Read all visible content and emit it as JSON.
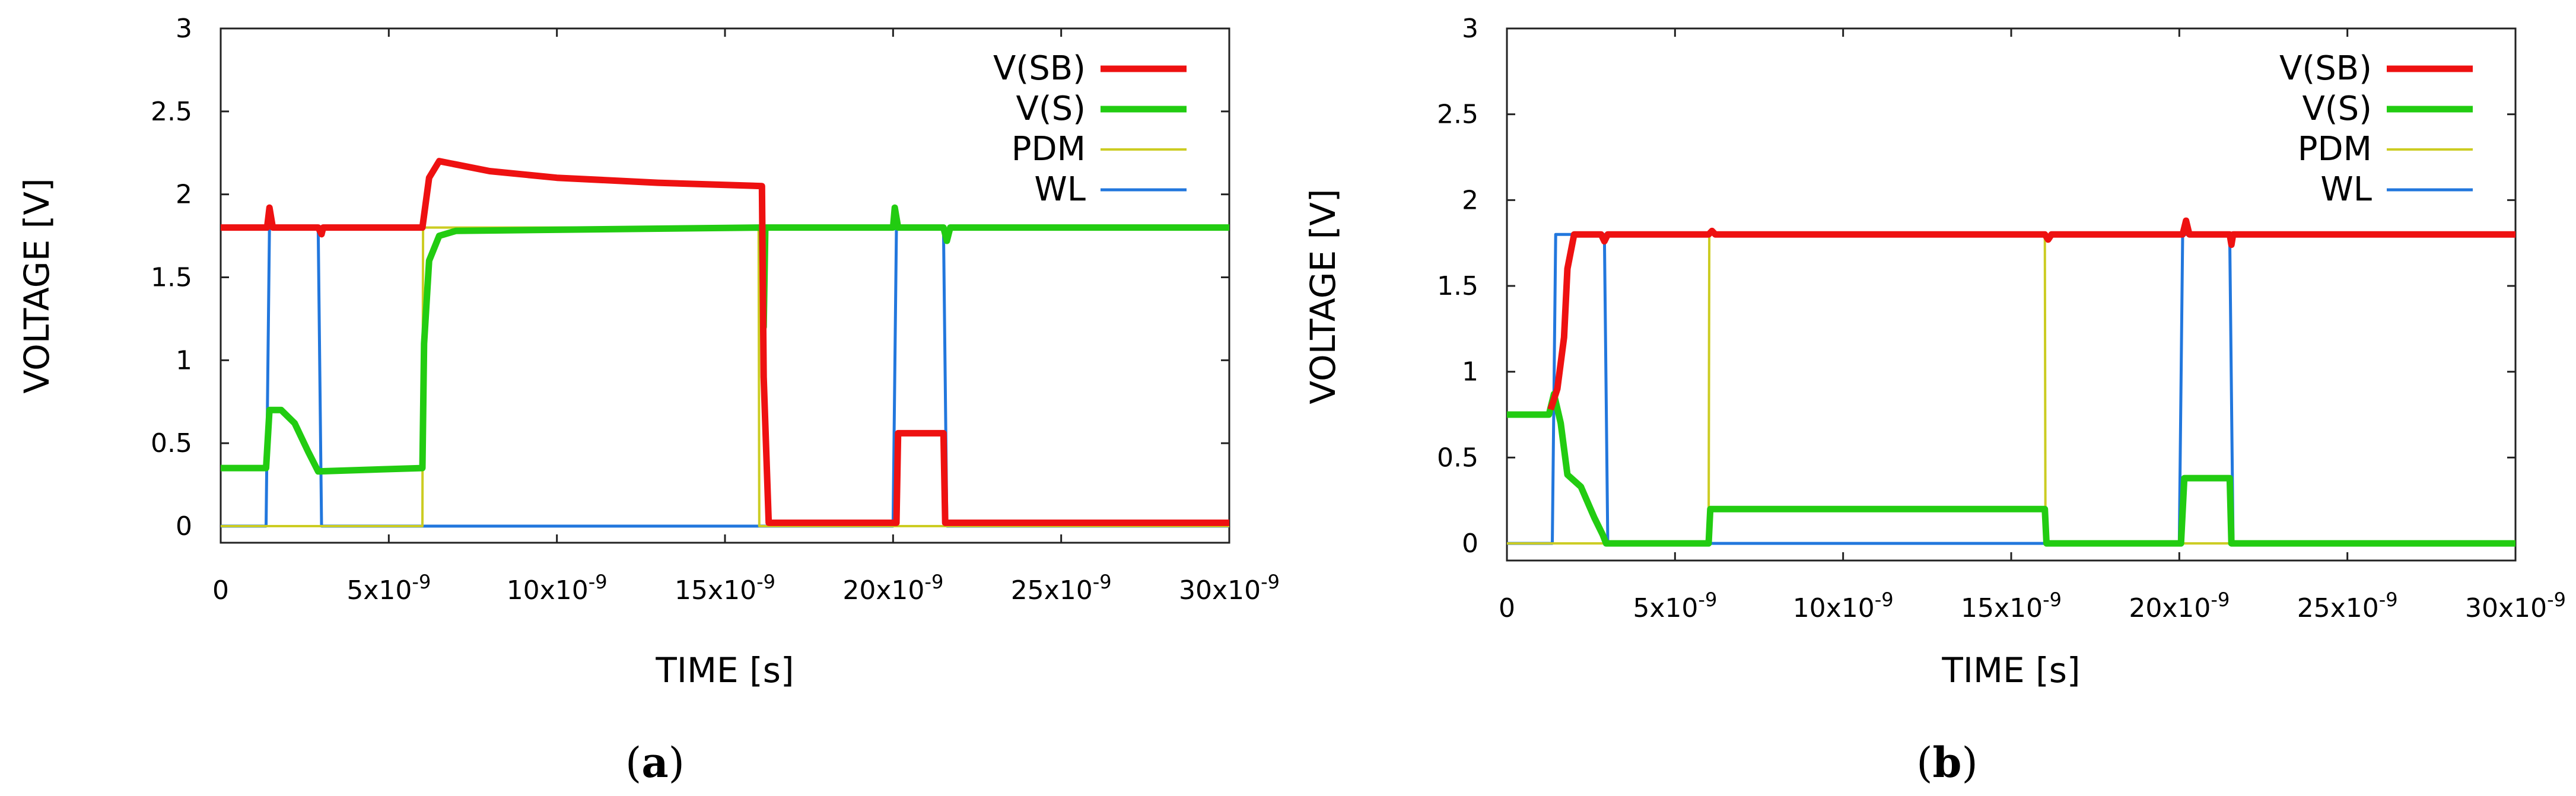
{
  "chart_data": [
    {
      "type": "line",
      "panel": "a",
      "caption_open": "(",
      "caption_letter": "a",
      "caption_close": ")",
      "xlabel": "TIME [s]",
      "ylabel": "VOLTAGE [V]",
      "xlim": [
        0,
        30
      ],
      "ylim": [
        -0.1,
        3
      ],
      "x_unit_suffix": "x10",
      "x_unit_exp": "-9",
      "xticks": [
        0,
        5,
        10,
        15,
        20,
        25,
        30
      ],
      "xtick_labels": [
        "0",
        "5",
        "10",
        "15",
        "20",
        "25",
        "30"
      ],
      "yticks": [
        0,
        0.5,
        1,
        1.5,
        2,
        2.5,
        3
      ],
      "ytick_labels": [
        "0",
        "0.5",
        "1",
        "1.5",
        "2",
        "2.5",
        "3"
      ],
      "grid": false,
      "legend_position": "top-right",
      "series": [
        {
          "name": "V(SB)",
          "color": "#ee1111",
          "width": 11,
          "points": [
            [
              0,
              1.8
            ],
            [
              1.38,
              1.8
            ],
            [
              1.45,
              1.92
            ],
            [
              1.55,
              1.8
            ],
            [
              2.9,
              1.8
            ],
            [
              3.0,
              1.76
            ],
            [
              3.05,
              1.8
            ],
            [
              6.0,
              1.8
            ],
            [
              6.2,
              2.1
            ],
            [
              6.5,
              2.2
            ],
            [
              7.0,
              2.18
            ],
            [
              8,
              2.14
            ],
            [
              10,
              2.1
            ],
            [
              13,
              2.07
            ],
            [
              16.1,
              2.05
            ],
            [
              16.15,
              0.9
            ],
            [
              16.3,
              0.02
            ],
            [
              20.1,
              0.02
            ],
            [
              20.15,
              0.56
            ],
            [
              21.5,
              0.56
            ],
            [
              21.55,
              0.02
            ],
            [
              30,
              0.02
            ]
          ]
        },
        {
          "name": "V(S)",
          "color": "#22cc11",
          "width": 11,
          "points": [
            [
              0,
              0.35
            ],
            [
              1.35,
              0.35
            ],
            [
              1.45,
              0.7
            ],
            [
              1.8,
              0.7
            ],
            [
              2.2,
              0.62
            ],
            [
              2.6,
              0.45
            ],
            [
              2.9,
              0.33
            ],
            [
              6.0,
              0.35
            ],
            [
              6.05,
              1.1
            ],
            [
              6.2,
              1.6
            ],
            [
              6.5,
              1.75
            ],
            [
              7.0,
              1.78
            ],
            [
              16.1,
              1.8
            ],
            [
              16.15,
              1.2
            ],
            [
              16.2,
              1.8
            ],
            [
              16.3,
              1.8
            ],
            [
              20.0,
              1.8
            ],
            [
              20.05,
              1.92
            ],
            [
              20.15,
              1.8
            ],
            [
              21.5,
              1.8
            ],
            [
              21.6,
              1.72
            ],
            [
              21.7,
              1.8
            ],
            [
              30,
              1.8
            ]
          ]
        },
        {
          "name": "PDM",
          "color": "#cccc22",
          "width": 4,
          "points": [
            [
              0,
              0
            ],
            [
              6.0,
              0
            ],
            [
              6.02,
              1.8
            ],
            [
              16.0,
              1.8
            ],
            [
              16.02,
              0
            ],
            [
              30,
              0
            ]
          ]
        },
        {
          "name": "WL",
          "color": "#2277dd",
          "width": 5,
          "points": [
            [
              0,
              0
            ],
            [
              1.35,
              0
            ],
            [
              1.45,
              1.8
            ],
            [
              2.9,
              1.8
            ],
            [
              3.0,
              0
            ],
            [
              20.0,
              0
            ],
            [
              20.1,
              1.8
            ],
            [
              21.5,
              1.8
            ],
            [
              21.6,
              0
            ],
            [
              30,
              0
            ]
          ]
        }
      ]
    },
    {
      "type": "line",
      "panel": "b",
      "caption_open": "(",
      "caption_letter": "b",
      "caption_close": ")",
      "xlabel": "TIME [s]",
      "ylabel": "VOLTAGE [V]",
      "xlim": [
        0,
        30
      ],
      "ylim": [
        -0.1,
        3
      ],
      "x_unit_suffix": "x10",
      "x_unit_exp": "-9",
      "xticks": [
        0,
        5,
        10,
        15,
        20,
        25,
        30
      ],
      "xtick_labels": [
        "0",
        "5",
        "10",
        "15",
        "20",
        "25",
        "30"
      ],
      "yticks": [
        0,
        0.5,
        1,
        1.5,
        2,
        2.5,
        3
      ],
      "ytick_labels": [
        "0",
        "0.5",
        "1",
        "1.5",
        "2",
        "2.5",
        "3"
      ],
      "grid": false,
      "legend_position": "top-right",
      "series": [
        {
          "name": "V(SB)",
          "color": "#ee1111",
          "width": 11,
          "points": [
            [
              1.3,
              0.78
            ],
            [
              1.5,
              0.9
            ],
            [
              1.7,
              1.2
            ],
            [
              1.8,
              1.6
            ],
            [
              2.0,
              1.8
            ],
            [
              2.8,
              1.8
            ],
            [
              2.9,
              1.76
            ],
            [
              3.0,
              1.8
            ],
            [
              6.0,
              1.8
            ],
            [
              6.1,
              1.82
            ],
            [
              6.2,
              1.8
            ],
            [
              16.0,
              1.8
            ],
            [
              16.1,
              1.77
            ],
            [
              16.2,
              1.8
            ],
            [
              20.1,
              1.8
            ],
            [
              20.2,
              1.88
            ],
            [
              20.3,
              1.8
            ],
            [
              21.5,
              1.8
            ],
            [
              21.55,
              1.74
            ],
            [
              21.6,
              1.8
            ],
            [
              30,
              1.8
            ]
          ]
        },
        {
          "name": "V(S)",
          "color": "#22cc11",
          "width": 11,
          "points": [
            [
              0,
              0.75
            ],
            [
              1.25,
              0.75
            ],
            [
              1.4,
              0.87
            ],
            [
              1.6,
              0.7
            ],
            [
              1.8,
              0.4
            ],
            [
              2.2,
              0.33
            ],
            [
              2.6,
              0.15
            ],
            [
              2.85,
              0.05
            ],
            [
              2.95,
              0
            ],
            [
              6.0,
              0
            ],
            [
              6.05,
              0.2
            ],
            [
              16.0,
              0.2
            ],
            [
              16.05,
              0
            ],
            [
              20.05,
              0
            ],
            [
              20.15,
              0.38
            ],
            [
              21.5,
              0.38
            ],
            [
              21.55,
              0
            ],
            [
              30,
              0
            ]
          ]
        },
        {
          "name": "PDM",
          "color": "#cccc22",
          "width": 4,
          "points": [
            [
              0,
              0
            ],
            [
              6.0,
              0
            ],
            [
              6.02,
              1.8
            ],
            [
              16.0,
              1.8
            ],
            [
              16.02,
              0
            ],
            [
              30,
              0
            ]
          ]
        },
        {
          "name": "WL",
          "color": "#2277dd",
          "width": 5,
          "points": [
            [
              0,
              0
            ],
            [
              1.35,
              0
            ],
            [
              1.45,
              1.8
            ],
            [
              2.9,
              1.8
            ],
            [
              3.0,
              0
            ],
            [
              20.0,
              0
            ],
            [
              20.1,
              1.8
            ],
            [
              21.5,
              1.8
            ],
            [
              21.6,
              0
            ],
            [
              30,
              0
            ]
          ]
        }
      ]
    }
  ]
}
